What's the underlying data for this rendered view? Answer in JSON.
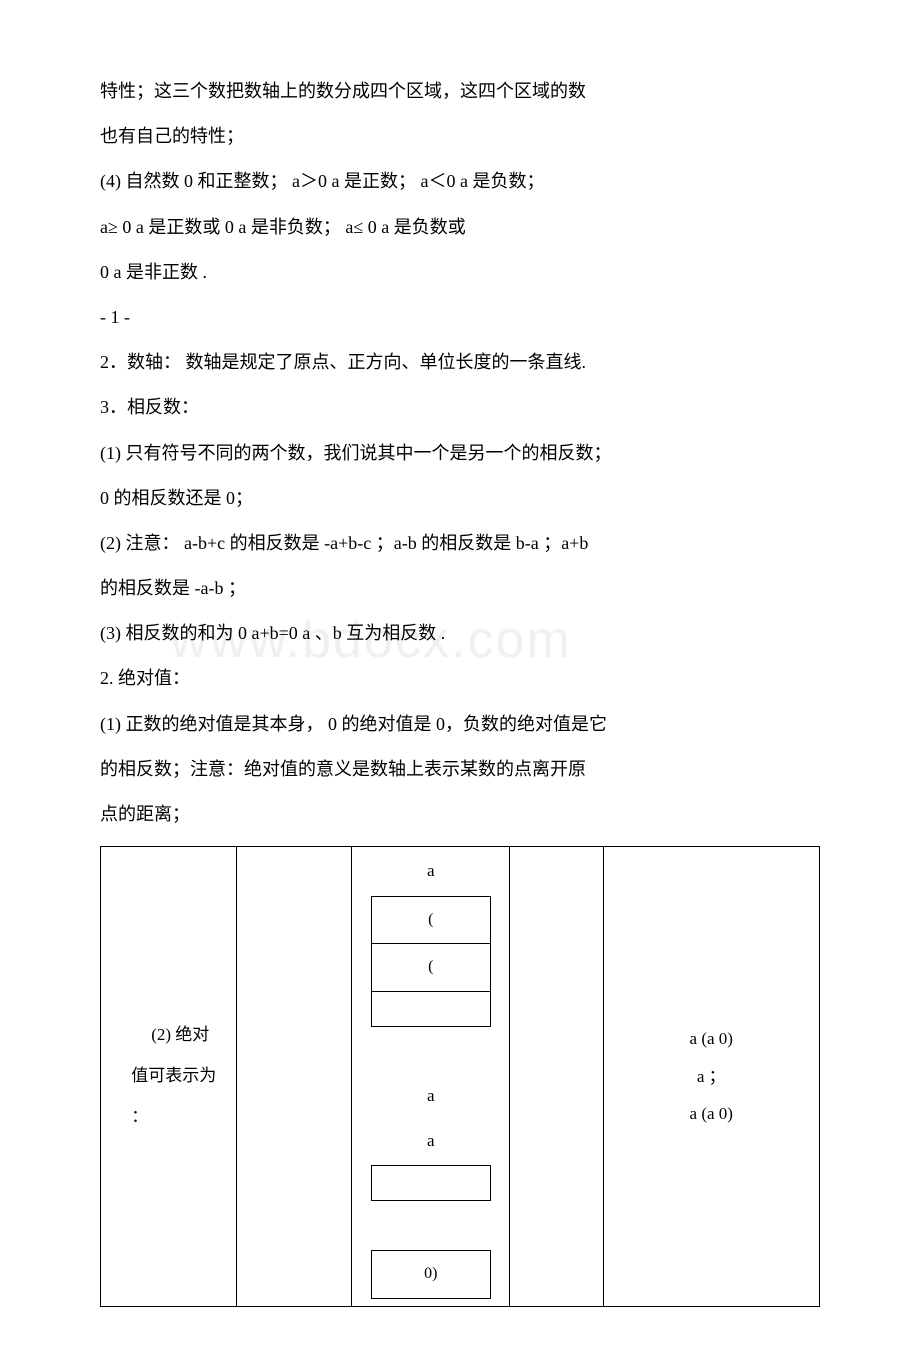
{
  "paragraphs": {
    "p1": "特性；这三个数把数轴上的数分成四个区域，这四个区域的数",
    "p2": "也有自己的特性；",
    "p3": "(4) 自然数 0 和正整数； a＞0 a 是正数； a＜0 a 是负数；",
    "p4": "a≥ 0 a 是正数或 0 a 是非负数； a≤ 0 a 是负数或",
    "p5": "0 a 是非正数 .",
    "p6": "- 1 -",
    "p7": "2．数轴： 数轴是规定了原点、正方向、单位长度的一条直线.",
    "p8": "3．相反数：",
    "p9": "(1) 只有符号不同的两个数，我们说其中一个是另一个的相反数；",
    "p10": "0 的相反数还是 0；",
    "p11": "(2) 注意： a-b+c 的相反数是 -a+b-c ；a-b 的相反数是 b-a ；a+b",
    "p12": "的相反数是 -a-b ；",
    "p13": "(3) 相反数的和为 0 a+b=0 a 、b 互为相反数 .",
    "p14": "2. 绝对值：",
    "p15": "(1) 正数的绝对值是其本身， 0 的绝对值是 0，负数的绝对值是它",
    "p16": "的相反数；注意：绝对值的意义是数轴上表示某数的点离开原",
    "p17": "点的距离；"
  },
  "table": {
    "col1": {
      "line1": "(2) 绝对",
      "line2": "值可表示为",
      "line3": "："
    },
    "col3": {
      "top_label": "a",
      "top_cell1": "(",
      "top_cell2": "(",
      "mid_label1": "a",
      "mid_label2": "a",
      "bot_cell": "0)"
    },
    "col5": {
      "line1": "a (a 0)",
      "line2": "a ；",
      "line3": "a (a 0)"
    }
  },
  "watermark": "www.bdocx.com"
}
